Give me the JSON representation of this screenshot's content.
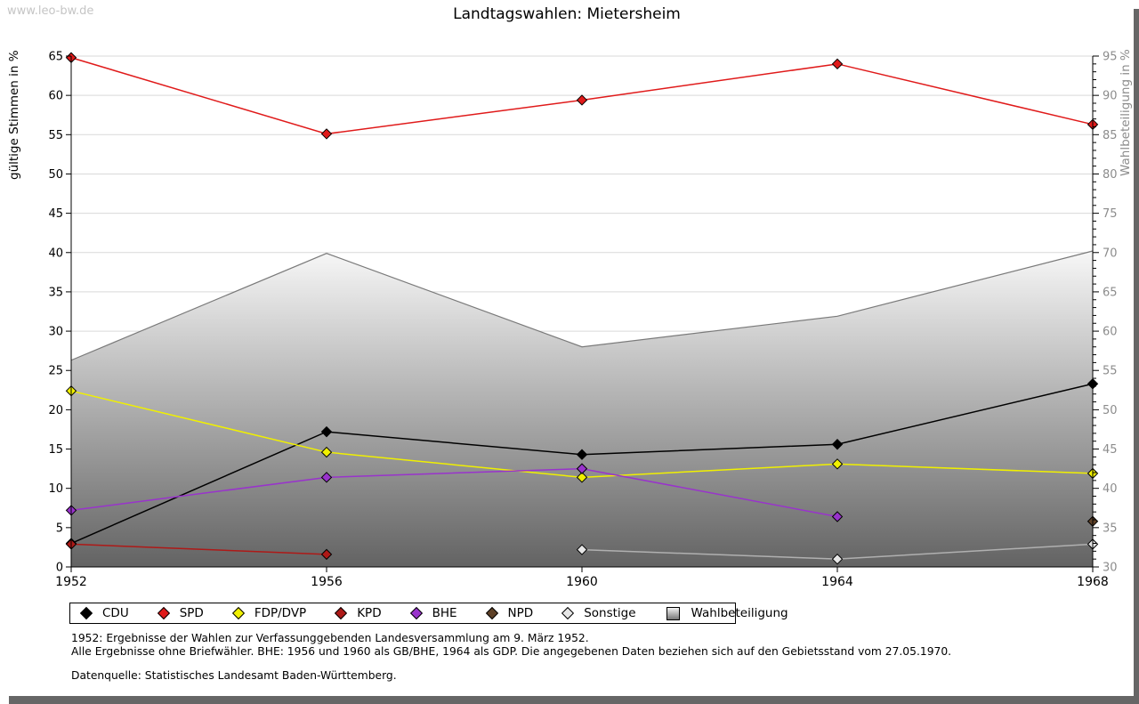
{
  "page": {
    "watermark": "www.leo-bw.de",
    "title": "Landtagswahlen: Mietersheim"
  },
  "chart_data": {
    "type": "line",
    "title": "Landtagswahlen: Mietersheim",
    "x": [
      1952,
      1956,
      1960,
      1964,
      1968
    ],
    "left_axis": {
      "label": "gültige Stimmen in %",
      "min": 0,
      "max": 65,
      "tick_step": 5
    },
    "right_axis": {
      "label": "Wahlbeteiligung in %",
      "min": 30,
      "max": 95,
      "tick_step": 5,
      "minor_tick_step": 1
    },
    "grid": true,
    "legend_position": "bottom",
    "series": [
      {
        "name": "CDU",
        "color": "#000000",
        "axis": "left",
        "values": [
          3.0,
          17.2,
          14.3,
          15.6,
          23.3
        ]
      },
      {
        "name": "SPD",
        "color": "#e01a1a",
        "axis": "left",
        "values": [
          64.8,
          55.1,
          59.4,
          64.0,
          56.3
        ]
      },
      {
        "name": "FDP/DVP",
        "color": "#f0f000",
        "axis": "left",
        "values": [
          22.4,
          14.6,
          11.4,
          13.1,
          11.9
        ]
      },
      {
        "name": "KPD",
        "color": "#ae1917",
        "axis": "left",
        "values": [
          2.9,
          1.6,
          null,
          null,
          null
        ]
      },
      {
        "name": "BHE",
        "color": "#9933cc",
        "axis": "left",
        "values": [
          7.2,
          11.4,
          12.5,
          6.4,
          null
        ]
      },
      {
        "name": "NPD",
        "color": "#5e4127",
        "axis": "left",
        "values": [
          null,
          null,
          null,
          null,
          5.8
        ]
      },
      {
        "name": "Sonstige",
        "color": "#b0b0b0",
        "marker_fill": "#e6e6e6",
        "axis": "left",
        "values": [
          null,
          null,
          2.2,
          1.0,
          2.9
        ]
      }
    ],
    "area_series": {
      "name": "Wahlbeteiligung",
      "axis": "right",
      "values": [
        56.3,
        69.9,
        58.0,
        61.9,
        70.2
      ]
    }
  },
  "footnotes": {
    "line1": "1952: Ergebnisse der Wahlen zur Verfassunggebenden Landesversammlung am 9. März 1952.",
    "line2": "Alle Ergebnisse ohne Briefwähler. BHE: 1956 und 1960 als GB/BHE, 1964 als GDP. Die angegebenen Daten beziehen sich auf den Gebietsstand vom 27.05.1970.",
    "source": "Datenquelle: Statistisches Landesamt Baden-Württemberg."
  },
  "colors": {
    "grid": "#d9d9d9",
    "axis": "#000000",
    "right_axis_text": "#8c8c8c",
    "area_border": "#7a7a7a",
    "area_top": "#fcfcfc",
    "area_bottom": "#636363",
    "shadow": "#666666"
  }
}
